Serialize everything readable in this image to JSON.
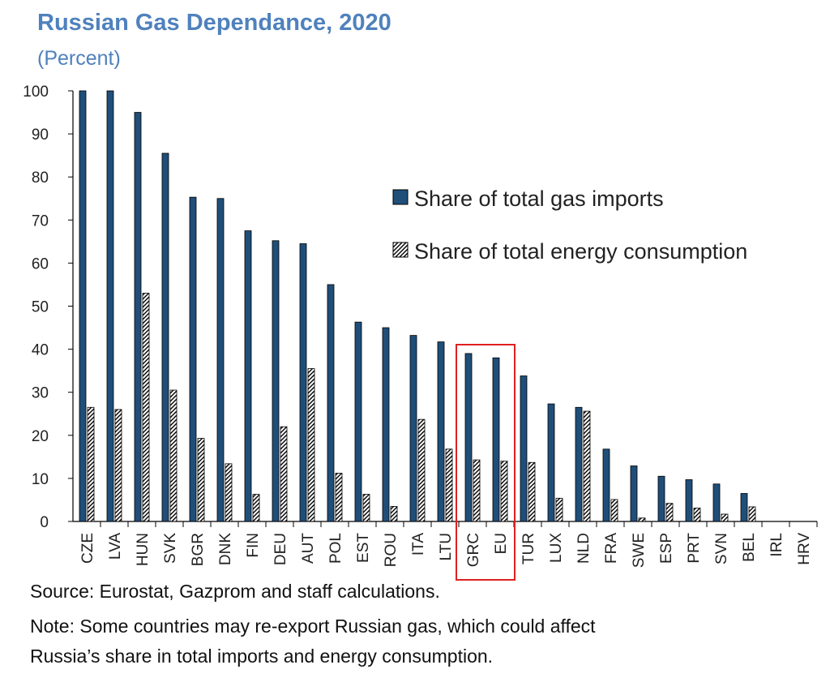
{
  "title": "Russian Gas Dependance, 2020",
  "subtitle": "(Percent)",
  "chart_data": {
    "type": "bar",
    "categories": [
      "CZE",
      "LVA",
      "HUN",
      "SVK",
      "BGR",
      "DNK",
      "FIN",
      "DEU",
      "AUT",
      "POL",
      "EST",
      "ROU",
      "ITA",
      "LTU",
      "GRC",
      "EU",
      "TUR",
      "LUX",
      "NLD",
      "FRA",
      "SWE",
      "ESP",
      "PRT",
      "SVN",
      "BEL",
      "IRL",
      "HRV"
    ],
    "series": [
      {
        "name": "Share of total gas imports",
        "color": "#1f4e79",
        "pattern": "solid",
        "values": [
          100,
          100,
          95,
          85.5,
          75.3,
          75,
          67.5,
          65.2,
          64.5,
          55,
          46.3,
          45,
          43.2,
          41.7,
          39,
          38,
          33.8,
          27.3,
          26.5,
          16.8,
          12.9,
          10.5,
          9.7,
          8.7,
          6.5,
          0,
          0
        ]
      },
      {
        "name": "Share of total energy consumption",
        "color": "#000000",
        "pattern": "hatched",
        "values": [
          26.5,
          26,
          53,
          30.5,
          19.3,
          13.4,
          6.3,
          22,
          35.5,
          11.2,
          6.3,
          3.5,
          23.7,
          16.8,
          14.3,
          14,
          13.7,
          5.4,
          25.6,
          5.1,
          0.8,
          4.2,
          3.1,
          1.7,
          3.4,
          0,
          0
        ]
      }
    ],
    "xlabel": "",
    "ylabel": "",
    "ylim": [
      0,
      100
    ],
    "yticks": [
      0,
      10,
      20,
      30,
      40,
      50,
      60,
      70,
      80,
      90,
      100
    ],
    "grid": false,
    "legend_position": "upper-right",
    "highlight": {
      "categories": [
        "GRC",
        "EU"
      ],
      "color": "#e02020"
    }
  },
  "footer": {
    "source": "Source: Eurostat, Gazprom and staff calculations.",
    "note_line1": "Note: Some countries may re-export Russian gas, which could affect",
    "note_line2": "Russia’s share in total imports and energy consumption."
  }
}
